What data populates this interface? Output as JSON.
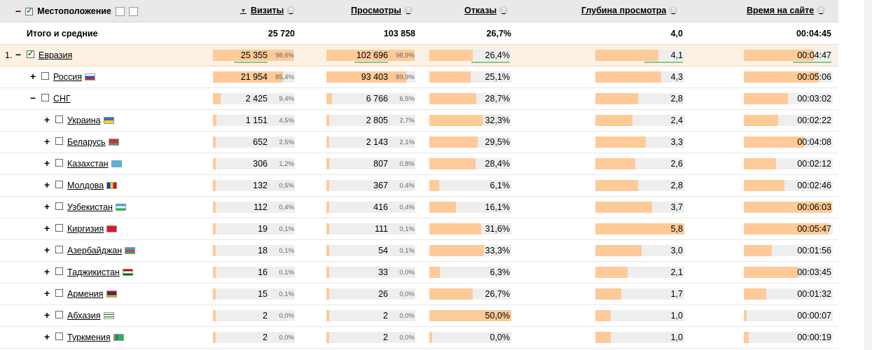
{
  "header": {
    "location_label": "Местоположение",
    "sort_arrow": "▼",
    "help_glyph": "?",
    "columns": [
      "Визиты",
      "Просмотры",
      "Отказы",
      "Глубина просмотра",
      "Время на сайте"
    ]
  },
  "totals": {
    "label": "Итого и средние",
    "visits": "25 720",
    "views": "103 858",
    "bounce": "26,7%",
    "depth": "4,0",
    "time": "00:04:45"
  },
  "colors": {
    "bar_fill": "#fdca98",
    "bar_bg": "#eeeeee",
    "selected_row": "#fdf1e4",
    "header_bg": "#e9e9e9",
    "underline": "#7ecb7e"
  },
  "rows": [
    {
      "num": "1.",
      "toggle": "−",
      "checked": true,
      "name": "Евразия",
      "flag": null,
      "level": 0,
      "visits": "25 355",
      "visits_pct": "98,6%",
      "visits_frac": 0.986,
      "views": "102 696",
      "views_pct": "98,9%",
      "views_frac": 0.989,
      "bounce": "26,4%",
      "bounce_frac": 0.264,
      "depth": "4,1",
      "depth_frac": 0.7069,
      "time": "00:04:47",
      "time_frac": 0.7865,
      "selected": true
    },
    {
      "num": "",
      "toggle": "+",
      "checked": false,
      "name": "Россия",
      "flag": "ru",
      "level": 1,
      "visits": "21 954",
      "visits_pct": "85,4%",
      "visits_frac": 0.854,
      "views": "93 403",
      "views_pct": "89,9%",
      "views_frac": 0.899,
      "bounce": "25,1%",
      "bounce_frac": 0.251,
      "depth": "4,3",
      "depth_frac": 0.7414,
      "time": "00:05:06",
      "time_frac": 0.8386,
      "selected": false
    },
    {
      "num": "",
      "toggle": "−",
      "checked": false,
      "name": "СНГ",
      "flag": null,
      "level": 1,
      "visits": "2 425",
      "visits_pct": "9,4%",
      "visits_frac": 0.094,
      "views": "6 766",
      "views_pct": "6,5%",
      "views_frac": 0.065,
      "bounce": "28,7%",
      "bounce_frac": 0.287,
      "depth": "2,8",
      "depth_frac": 0.4828,
      "time": "00:03:02",
      "time_frac": 0.4986,
      "selected": false
    },
    {
      "num": "",
      "toggle": "+",
      "checked": false,
      "name": "Украина",
      "flag": "ua",
      "level": 2,
      "visits": "1 151",
      "visits_pct": "4,5%",
      "visits_frac": 0.045,
      "views": "2 805",
      "views_pct": "2,7%",
      "views_frac": 0.027,
      "bounce": "32,3%",
      "bounce_frac": 0.323,
      "depth": "2,4",
      "depth_frac": 0.4138,
      "time": "00:02:22",
      "time_frac": 0.389,
      "selected": false
    },
    {
      "num": "",
      "toggle": "+",
      "checked": false,
      "name": "Беларусь",
      "flag": "by",
      "level": 2,
      "visits": "652",
      "visits_pct": "2,5%",
      "visits_frac": 0.025,
      "views": "2 143",
      "views_pct": "2,1%",
      "views_frac": 0.021,
      "bounce": "29,5%",
      "bounce_frac": 0.295,
      "depth": "3,3",
      "depth_frac": 0.569,
      "time": "00:04:08",
      "time_frac": 0.6795,
      "selected": false
    },
    {
      "num": "",
      "toggle": "+",
      "checked": false,
      "name": "Казахстан",
      "flag": "kz",
      "level": 2,
      "visits": "306",
      "visits_pct": "1,2%",
      "visits_frac": 0.012,
      "views": "807",
      "views_pct": "0,8%",
      "views_frac": 0.008,
      "bounce": "28,4%",
      "bounce_frac": 0.284,
      "depth": "2,6",
      "depth_frac": 0.4483,
      "time": "00:02:12",
      "time_frac": 0.3616,
      "selected": false
    },
    {
      "num": "",
      "toggle": "+",
      "checked": false,
      "name": "Молдова",
      "flag": "md",
      "level": 2,
      "visits": "132",
      "visits_pct": "0,5%",
      "visits_frac": 0.005,
      "views": "367",
      "views_pct": "0,4%",
      "views_frac": 0.004,
      "bounce": "6,1%",
      "bounce_frac": 0.061,
      "depth": "2,8",
      "depth_frac": 0.4828,
      "time": "00:02:46",
      "time_frac": 0.4548,
      "selected": false
    },
    {
      "num": "",
      "toggle": "+",
      "checked": false,
      "name": "Узбекистан",
      "flag": "uz",
      "level": 2,
      "visits": "112",
      "visits_pct": "0,4%",
      "visits_frac": 0.004,
      "views": "416",
      "views_pct": "0,4%",
      "views_frac": 0.004,
      "bounce": "16,1%",
      "bounce_frac": 0.161,
      "depth": "3,7",
      "depth_frac": 0.6379,
      "time": "00:06:03",
      "time_frac": 0.9945,
      "selected": false
    },
    {
      "num": "",
      "toggle": "+",
      "checked": false,
      "name": "Киргизия",
      "flag": "kg",
      "level": 2,
      "visits": "19",
      "visits_pct": "0,1%",
      "visits_frac": 0.001,
      "views": "111",
      "views_pct": "0,1%",
      "views_frac": 0.001,
      "bounce": "31,6%",
      "bounce_frac": 0.316,
      "depth": "5,8",
      "depth_frac": 1.0,
      "time": "00:05:47",
      "time_frac": 0.9507,
      "selected": false
    },
    {
      "num": "",
      "toggle": "+",
      "checked": false,
      "name": "Азербайджан",
      "flag": "az",
      "level": 2,
      "visits": "18",
      "visits_pct": "0,1%",
      "visits_frac": 0.001,
      "views": "54",
      "views_pct": "0,1%",
      "views_frac": 0.001,
      "bounce": "33,3%",
      "bounce_frac": 0.333,
      "depth": "3,0",
      "depth_frac": 0.5172,
      "time": "00:01:56",
      "time_frac": 0.3178,
      "selected": false
    },
    {
      "num": "",
      "toggle": "+",
      "checked": false,
      "name": "Таджикистан",
      "flag": "tj",
      "level": 2,
      "visits": "16",
      "visits_pct": "0,1%",
      "visits_frac": 0.001,
      "views": "33",
      "views_pct": "0,0%",
      "views_frac": 0.0,
      "bounce": "6,3%",
      "bounce_frac": 0.063,
      "depth": "2,1",
      "depth_frac": 0.3621,
      "time": "00:03:45",
      "time_frac": 0.6164,
      "selected": false
    },
    {
      "num": "",
      "toggle": "+",
      "checked": false,
      "name": "Армения",
      "flag": "am",
      "level": 2,
      "visits": "15",
      "visits_pct": "0,1%",
      "visits_frac": 0.001,
      "views": "26",
      "views_pct": "0,0%",
      "views_frac": 0.0,
      "bounce": "26,7%",
      "bounce_frac": 0.267,
      "depth": "1,7",
      "depth_frac": 0.2931,
      "time": "00:01:32",
      "time_frac": 0.2521,
      "selected": false
    },
    {
      "num": "",
      "toggle": "+",
      "checked": false,
      "name": "Абхазия",
      "flag": "ab",
      "level": 2,
      "visits": "2",
      "visits_pct": "0,0%",
      "visits_frac": 0.0,
      "views": "2",
      "views_pct": "0,0%",
      "views_frac": 0.0,
      "bounce": "50,0%",
      "bounce_frac": 0.5,
      "depth": "1,0",
      "depth_frac": 0.1724,
      "time": "00:00:07",
      "time_frac": 0.0192,
      "selected": false
    },
    {
      "num": "",
      "toggle": "+",
      "checked": false,
      "name": "Туркмения",
      "flag": "tm",
      "level": 2,
      "visits": "2",
      "visits_pct": "0,0%",
      "visits_frac": 0.0,
      "views": "2",
      "views_pct": "0,0%",
      "views_frac": 0.0,
      "bounce": "0,0%",
      "bounce_frac": 0.0,
      "depth": "1,0",
      "depth_frac": 0.1724,
      "time": "00:00:19",
      "time_frac": 0.0521,
      "selected": false
    }
  ]
}
